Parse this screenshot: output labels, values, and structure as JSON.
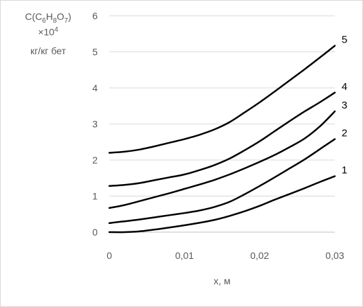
{
  "chart_data": {
    "type": "line",
    "ylabel_lines": [
      "C(C6H8O7)",
      "×10^4",
      "кг/кг бет"
    ],
    "ylabel_parts": {
      "main": "C(C",
      "sub6": "6",
      "h": "H",
      "sub8": "8",
      "o": "O",
      "sub7": "7",
      "close": ")",
      "mult": "×10",
      "sup4": "4",
      "unit": "кг/кг бет"
    },
    "xlabel": "x, м",
    "xlim": [
      0,
      0.03
    ],
    "ylim": [
      0,
      6
    ],
    "x_ticks": [
      {
        "value": 0,
        "label": "0"
      },
      {
        "value": 0.01,
        "label": "0,01"
      },
      {
        "value": 0.02,
        "label": "0,02"
      },
      {
        "value": 0.03,
        "label": "0,03"
      }
    ],
    "y_ticks": [
      {
        "value": 0,
        "label": "0"
      },
      {
        "value": 1,
        "label": "1"
      },
      {
        "value": 2,
        "label": "2"
      },
      {
        "value": 3,
        "label": "3"
      },
      {
        "value": 4,
        "label": "4"
      },
      {
        "value": 5,
        "label": "5"
      },
      {
        "value": 6,
        "label": "6"
      }
    ],
    "grid": "horizontal",
    "series_color": "#000000",
    "series": [
      {
        "name": "1",
        "x": [
          0,
          0.002,
          0.004,
          0.006,
          0.008,
          0.01,
          0.012,
          0.014,
          0.016,
          0.018,
          0.02,
          0.022,
          0.024,
          0.026,
          0.028,
          0.03
        ],
        "values": [
          0.0,
          0.0,
          0.02,
          0.07,
          0.13,
          0.19,
          0.26,
          0.34,
          0.45,
          0.58,
          0.73,
          0.9,
          1.06,
          1.22,
          1.39,
          1.55
        ]
      },
      {
        "name": "2",
        "x": [
          0,
          0.002,
          0.004,
          0.006,
          0.008,
          0.01,
          0.012,
          0.014,
          0.016,
          0.018,
          0.02,
          0.022,
          0.024,
          0.026,
          0.028,
          0.03
        ],
        "values": [
          0.25,
          0.3,
          0.35,
          0.41,
          0.47,
          0.53,
          0.6,
          0.7,
          0.84,
          1.05,
          1.28,
          1.52,
          1.77,
          2.02,
          2.3,
          2.58
        ]
      },
      {
        "name": "3",
        "x": [
          0,
          0.002,
          0.004,
          0.006,
          0.008,
          0.01,
          0.012,
          0.014,
          0.016,
          0.018,
          0.02,
          0.022,
          0.024,
          0.026,
          0.028,
          0.03
        ],
        "values": [
          0.67,
          0.75,
          0.86,
          0.97,
          1.08,
          1.2,
          1.32,
          1.45,
          1.6,
          1.77,
          1.95,
          2.14,
          2.36,
          2.6,
          2.93,
          3.35
        ]
      },
      {
        "name": "4",
        "x": [
          0,
          0.002,
          0.004,
          0.006,
          0.008,
          0.01,
          0.012,
          0.014,
          0.016,
          0.018,
          0.02,
          0.022,
          0.024,
          0.026,
          0.028,
          0.03
        ],
        "values": [
          1.28,
          1.31,
          1.36,
          1.44,
          1.52,
          1.6,
          1.72,
          1.86,
          2.04,
          2.27,
          2.52,
          2.8,
          3.08,
          3.35,
          3.6,
          3.87
        ]
      },
      {
        "name": "5",
        "x": [
          0,
          0.002,
          0.004,
          0.006,
          0.008,
          0.01,
          0.012,
          0.014,
          0.016,
          0.018,
          0.02,
          0.022,
          0.024,
          0.026,
          0.028,
          0.03
        ],
        "values": [
          2.2,
          2.23,
          2.29,
          2.38,
          2.48,
          2.58,
          2.7,
          2.85,
          3.05,
          3.32,
          3.6,
          3.9,
          4.21,
          4.52,
          4.84,
          5.17
        ]
      }
    ]
  }
}
